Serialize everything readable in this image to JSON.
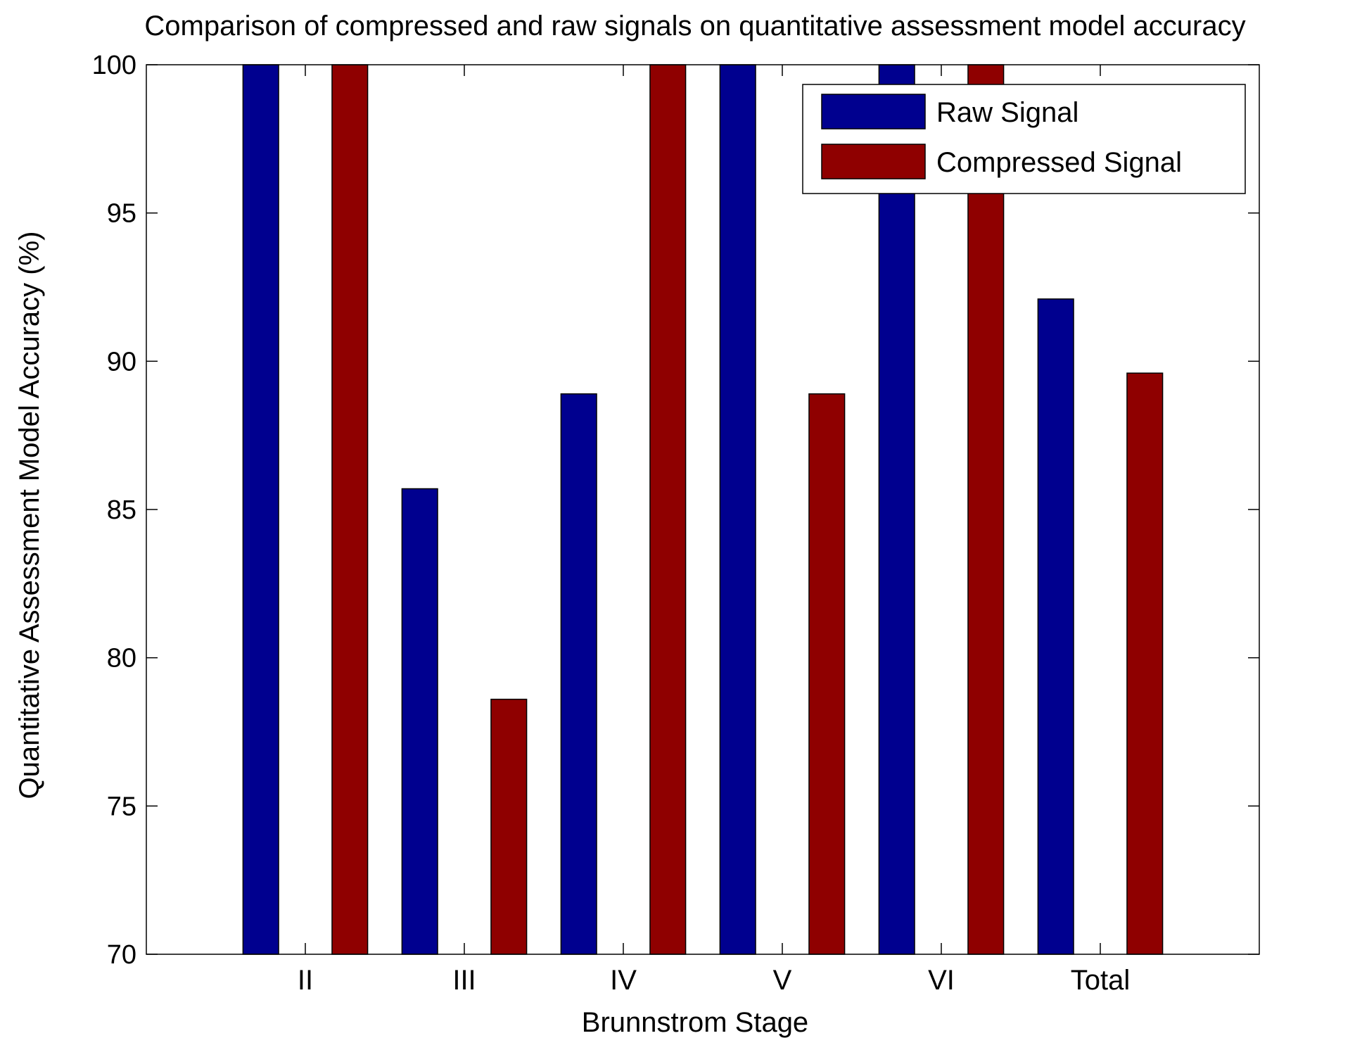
{
  "chart_data": {
    "type": "bar",
    "title": "Comparison of compressed and raw signals on quantitative assessment model accuracy",
    "xlabel": "Brunnstrom Stage",
    "ylabel": "Quantitative Assessment Model Accuracy (%)",
    "categories": [
      "II",
      "III",
      "IV",
      "V",
      "VI",
      "Total"
    ],
    "series": [
      {
        "name": "Raw Signal",
        "color": "#00008F",
        "values": [
          100,
          85.7,
          88.9,
          100,
          100,
          92.1
        ]
      },
      {
        "name": "Compressed Signal",
        "color": "#8F0000",
        "values": [
          100,
          78.6,
          100,
          88.9,
          100,
          89.6
        ]
      }
    ],
    "ylim": [
      70,
      100
    ],
    "yticks": [
      70,
      75,
      80,
      85,
      90,
      95,
      100
    ],
    "xlim": [
      0,
      7
    ],
    "grid": false,
    "legend_position": "top-right"
  }
}
